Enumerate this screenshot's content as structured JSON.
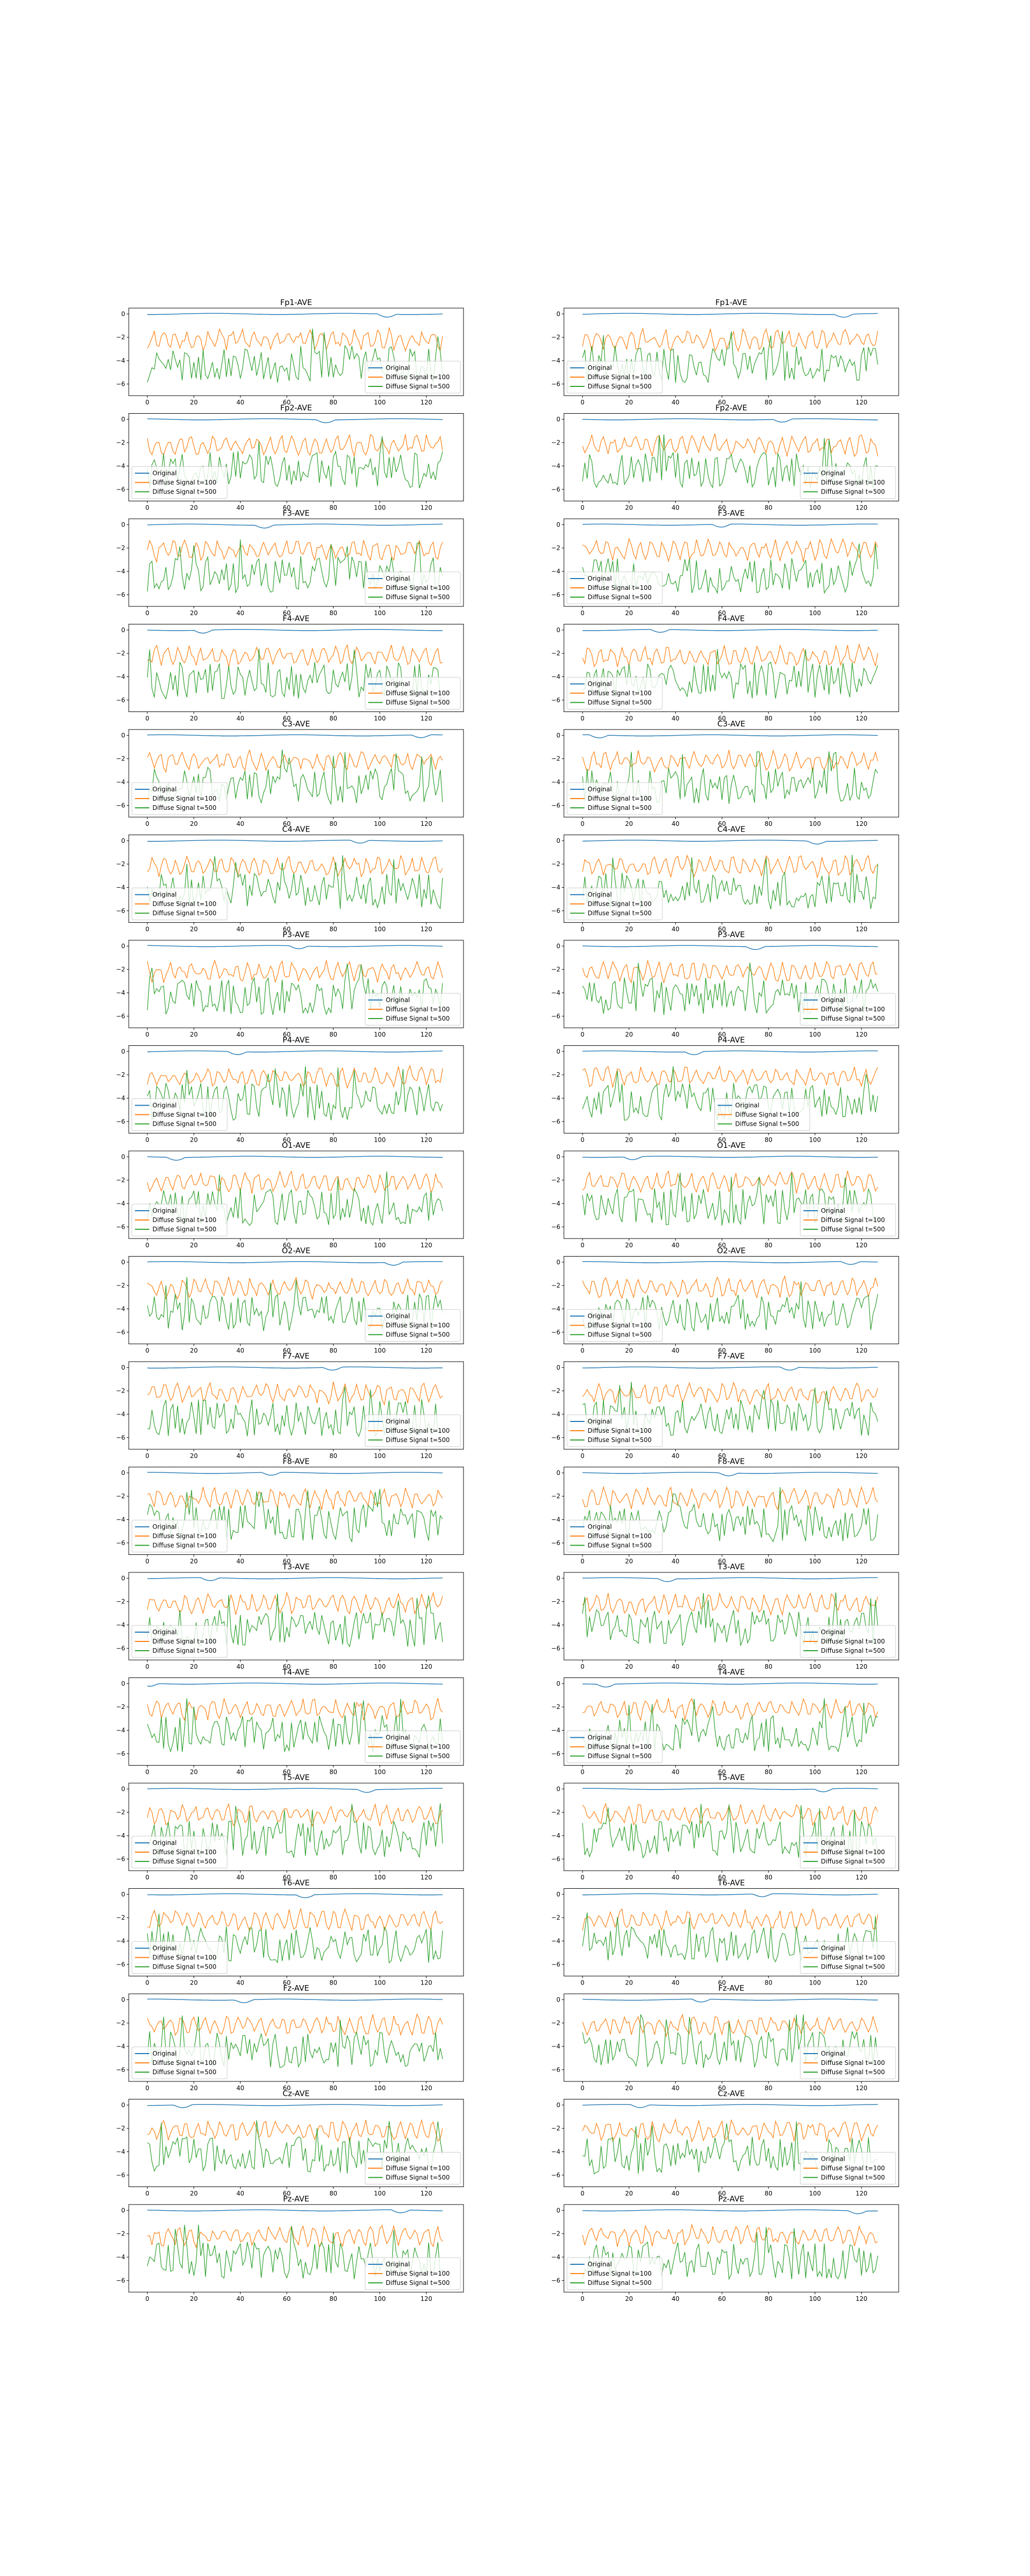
{
  "figure": {
    "legend_labels": [
      "Original",
      "Diffuse Signal t=100",
      "Diffuse Signal t=500"
    ],
    "colors": {
      "original": "#1f77b4",
      "t100": "#ff7f0e",
      "t500": "#2ca02c",
      "axes": "#000000",
      "background": "#ffffff"
    }
  },
  "chart_data": [
    {
      "type": "line",
      "title": "Fp1-AVE",
      "column": 0,
      "legend_loc": "lower-right",
      "seed": 11
    },
    {
      "type": "line",
      "title": "Fp1-AVE",
      "column": 1,
      "legend_loc": "lower-left",
      "seed": 12
    },
    {
      "type": "line",
      "title": "Fp2-AVE",
      "column": 0,
      "legend_loc": "lower-left",
      "seed": 21
    },
    {
      "type": "line",
      "title": "Fp2-AVE",
      "column": 1,
      "legend_loc": "lower-right",
      "seed": 22
    },
    {
      "type": "line",
      "title": "F3-AVE",
      "column": 0,
      "legend_loc": "lower-right",
      "seed": 31
    },
    {
      "type": "line",
      "title": "F3-AVE",
      "column": 1,
      "legend_loc": "lower-left",
      "seed": 32
    },
    {
      "type": "line",
      "title": "F4-AVE",
      "column": 0,
      "legend_loc": "lower-right",
      "seed": 41
    },
    {
      "type": "line",
      "title": "F4-AVE",
      "column": 1,
      "legend_loc": "lower-left",
      "seed": 42
    },
    {
      "type": "line",
      "title": "C3-AVE",
      "column": 0,
      "legend_loc": "lower-left",
      "seed": 51
    },
    {
      "type": "line",
      "title": "C3-AVE",
      "column": 1,
      "legend_loc": "lower-left",
      "seed": 52
    },
    {
      "type": "line",
      "title": "C4-AVE",
      "column": 0,
      "legend_loc": "lower-left",
      "seed": 61
    },
    {
      "type": "line",
      "title": "C4-AVE",
      "column": 1,
      "legend_loc": "lower-left",
      "seed": 62
    },
    {
      "type": "line",
      "title": "P3-AVE",
      "column": 0,
      "legend_loc": "lower-right",
      "seed": 71
    },
    {
      "type": "line",
      "title": "P3-AVE",
      "column": 1,
      "legend_loc": "lower-right",
      "seed": 72
    },
    {
      "type": "line",
      "title": "P4-AVE",
      "column": 0,
      "legend_loc": "lower-left",
      "seed": 81
    },
    {
      "type": "line",
      "title": "P4-AVE",
      "column": 1,
      "legend_loc": "lower-center",
      "seed": 82
    },
    {
      "type": "line",
      "title": "O1-AVE",
      "column": 0,
      "legend_loc": "lower-left",
      "seed": 91
    },
    {
      "type": "line",
      "title": "O1-AVE",
      "column": 1,
      "legend_loc": "lower-right",
      "seed": 92
    },
    {
      "type": "line",
      "title": "O2-AVE",
      "column": 0,
      "legend_loc": "lower-right",
      "seed": 101
    },
    {
      "type": "line",
      "title": "O2-AVE",
      "column": 1,
      "legend_loc": "lower-left",
      "seed": 102
    },
    {
      "type": "line",
      "title": "F7-AVE",
      "column": 0,
      "legend_loc": "lower-right",
      "seed": 111
    },
    {
      "type": "line",
      "title": "F7-AVE",
      "column": 1,
      "legend_loc": "lower-left",
      "seed": 112
    },
    {
      "type": "line",
      "title": "F8-AVE",
      "column": 0,
      "legend_loc": "lower-left",
      "seed": 121
    },
    {
      "type": "line",
      "title": "F8-AVE",
      "column": 1,
      "legend_loc": "lower-left",
      "seed": 122
    },
    {
      "type": "line",
      "title": "T3-AVE",
      "column": 0,
      "legend_loc": "lower-left",
      "seed": 131
    },
    {
      "type": "line",
      "title": "T3-AVE",
      "column": 1,
      "legend_loc": "lower-right",
      "seed": 132
    },
    {
      "type": "line",
      "title": "T4-AVE",
      "column": 0,
      "legend_loc": "lower-right",
      "seed": 141
    },
    {
      "type": "line",
      "title": "T4-AVE",
      "column": 1,
      "legend_loc": "lower-left",
      "seed": 142
    },
    {
      "type": "line",
      "title": "T5-AVE",
      "column": 0,
      "legend_loc": "lower-left",
      "seed": 151
    },
    {
      "type": "line",
      "title": "T5-AVE",
      "column": 1,
      "legend_loc": "lower-right",
      "seed": 152
    },
    {
      "type": "line",
      "title": "T6-AVE",
      "column": 0,
      "legend_loc": "lower-left",
      "seed": 161
    },
    {
      "type": "line",
      "title": "T6-AVE",
      "column": 1,
      "legend_loc": "lower-right",
      "seed": 162
    },
    {
      "type": "line",
      "title": "Fz-AVE",
      "column": 0,
      "legend_loc": "lower-left",
      "seed": 171
    },
    {
      "type": "line",
      "title": "Fz-AVE",
      "column": 1,
      "legend_loc": "lower-right",
      "seed": 172
    },
    {
      "type": "line",
      "title": "Cz-AVE",
      "column": 0,
      "legend_loc": "lower-right",
      "seed": 181
    },
    {
      "type": "line",
      "title": "Cz-AVE",
      "column": 1,
      "legend_loc": "lower-right",
      "seed": 182
    },
    {
      "type": "line",
      "title": "Pz-AVE",
      "column": 0,
      "legend_loc": "lower-right",
      "seed": 191
    },
    {
      "type": "line",
      "title": "Pz-AVE",
      "column": 1,
      "legend_loc": "lower-left",
      "seed": 192
    }
  ],
  "axes": {
    "xlim": [
      -8,
      136
    ],
    "ylim": [
      -7.0,
      0.5
    ],
    "xticks": [
      "0",
      "20",
      "40",
      "60",
      "80",
      "100",
      "120"
    ],
    "yticks": [
      "0",
      "−2",
      "−4",
      "−6"
    ],
    "grid": false
  }
}
